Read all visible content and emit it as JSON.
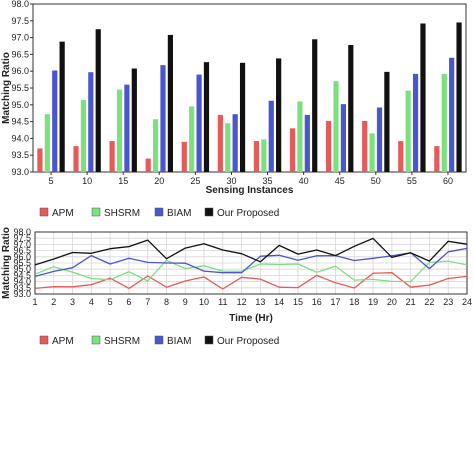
{
  "chart_data": [
    {
      "type": "bar",
      "xlabel": "Sensing Instances",
      "ylabel": "Matching Ratio",
      "ylim": [
        93.0,
        98.0
      ],
      "yticks": [
        "93.0",
        "93.5",
        "94.0",
        "94.5",
        "95.0",
        "95.5",
        "96.0",
        "96.5",
        "97.0",
        "97.5",
        "98.0"
      ],
      "categories": [
        "5",
        "10",
        "15",
        "20",
        "25",
        "30",
        "35",
        "40",
        "45",
        "50",
        "55",
        "60"
      ],
      "grid": false,
      "legend": "bottom",
      "series": [
        {
          "name": "APM",
          "color": "#e65a5a",
          "values": [
            93.7,
            93.77,
            93.92,
            93.4,
            93.9,
            94.7,
            93.92,
            94.3,
            94.52,
            94.52,
            93.92,
            93.77
          ]
        },
        {
          "name": "SHSRM",
          "color": "#7ce07c",
          "values": [
            94.72,
            95.15,
            95.45,
            94.57,
            94.95,
            94.45,
            93.97,
            95.1,
            95.7,
            94.15,
            95.42,
            95.92
          ]
        },
        {
          "name": "BIAM",
          "color": "#4a55d0",
          "values": [
            96.02,
            95.97,
            95.6,
            96.18,
            95.9,
            94.72,
            95.12,
            94.7,
            95.02,
            94.92,
            95.92,
            96.4
          ]
        },
        {
          "name": "Our Proposed",
          "color": "#111111",
          "values": [
            96.88,
            97.25,
            96.08,
            97.08,
            96.27,
            96.25,
            96.38,
            96.95,
            96.78,
            95.98,
            97.42,
            97.45
          ]
        }
      ]
    },
    {
      "type": "line",
      "xlabel": "Time (Hr)",
      "ylabel": "Matching Ratio",
      "ylim": [
        93.0,
        98.0
      ],
      "yticks": [
        "93.0",
        "93.5",
        "94.0",
        "94.5",
        "95.0",
        "95.5",
        "96.0",
        "96.5",
        "97.0",
        "97.5",
        "98.0"
      ],
      "x": [
        "1",
        "2",
        "3",
        "4",
        "5",
        "6",
        "7",
        "8",
        "9",
        "10",
        "11",
        "12",
        "13",
        "14",
        "15",
        "16",
        "17",
        "18",
        "19",
        "20",
        "21",
        "22",
        "23",
        "24"
      ],
      "grid": true,
      "legend": "bottom",
      "series": [
        {
          "name": "APM",
          "color": "#e65a5a",
          "values": [
            93.45,
            93.6,
            93.58,
            93.75,
            94.28,
            93.45,
            94.45,
            93.55,
            94.05,
            94.38,
            93.4,
            94.35,
            94.2,
            93.55,
            93.52,
            94.5,
            93.9,
            93.48,
            94.68,
            94.72,
            93.55,
            93.72,
            94.25,
            94.42
          ]
        },
        {
          "name": "SHSRM",
          "color": "#7ce07c",
          "values": [
            94.6,
            95.2,
            94.75,
            94.25,
            94.15,
            94.8,
            94.05,
            95.72,
            95.05,
            95.28,
            94.85,
            94.82,
            95.42,
            95.38,
            95.42,
            94.75,
            95.25,
            94.12,
            94.18,
            94.02,
            94.0,
            95.55,
            95.65,
            95.35
          ]
        },
        {
          "name": "BIAM",
          "color": "#4a55d0",
          "values": [
            94.42,
            94.82,
            95.12,
            96.1,
            95.42,
            95.88,
            95.55,
            95.5,
            95.48,
            94.85,
            94.72,
            94.72,
            96.05,
            96.12,
            95.72,
            96.08,
            96.1,
            95.7,
            95.88,
            96.08,
            96.32,
            95.05,
            96.4,
            96.68
          ]
        },
        {
          "name": "Our Proposed",
          "color": "#111111",
          "values": [
            95.35,
            95.82,
            96.35,
            96.28,
            96.65,
            96.82,
            97.35,
            95.85,
            96.7,
            97.05,
            96.55,
            96.25,
            95.6,
            96.92,
            96.22,
            96.55,
            96.1,
            96.85,
            97.48,
            95.95,
            96.32,
            95.65,
            97.25,
            97.02
          ]
        }
      ]
    }
  ]
}
